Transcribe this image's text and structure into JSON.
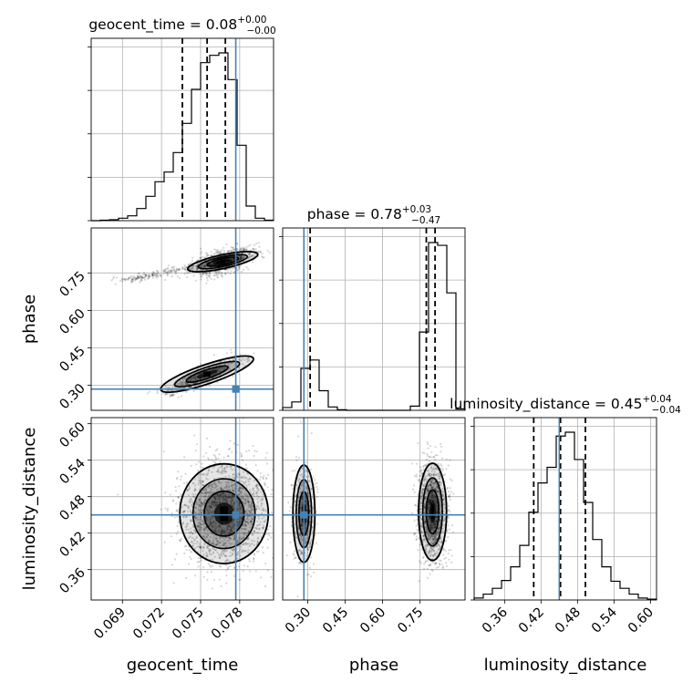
{
  "chart_data": {
    "type": "corner",
    "parameters": [
      "geocent_time",
      "phase",
      "luminosity_distance"
    ],
    "titles": [
      {
        "param": "geocent_time",
        "prefix": "geocent_time = ",
        "median": "0.08",
        "plus": "+0.00",
        "minus": "−0.00"
      },
      {
        "param": "phase",
        "prefix": "phase = ",
        "median": "0.78",
        "plus": "+0.03",
        "minus": "−0.47"
      },
      {
        "param": "luminosity_distance",
        "prefix": "luminosity_distance = ",
        "median": "0.45",
        "plus": "+0.04",
        "minus": "−0.04"
      }
    ],
    "ranges": {
      "geocent_time": [
        0.0666,
        0.0806
      ],
      "phase": [
        0.2,
        0.93
      ],
      "luminosity_distance": [
        0.31,
        0.61
      ]
    },
    "ticks": {
      "geocent_time": {
        "values": [
          0.069,
          0.072,
          0.075,
          0.078
        ],
        "labels": [
          "0.069",
          "0.072",
          "0.075",
          "0.078"
        ]
      },
      "phase": {
        "values": [
          0.3,
          0.45,
          0.6,
          0.75
        ],
        "labels": [
          "0.30",
          "0.45",
          "0.60",
          "0.75"
        ]
      },
      "luminosity_distance": {
        "values": [
          0.36,
          0.42,
          0.48,
          0.54,
          0.6
        ],
        "labels": [
          "0.36",
          "0.42",
          "0.48",
          "0.54",
          "0.60"
        ]
      }
    },
    "truths": {
      "geocent_time": 0.0777,
      "phase": 0.285,
      "luminosity_distance": 0.45
    },
    "quantiles": {
      "geocent_time": [
        0.0736,
        0.0755,
        0.0769
      ],
      "phase": [
        0.31,
        0.775,
        0.81
      ],
      "luminosity_distance": [
        0.408,
        0.452,
        0.493
      ]
    },
    "histograms": {
      "geocent_time": {
        "edges": [
          0.0666,
          0.0673,
          0.068,
          0.0687,
          0.0694,
          0.0701,
          0.0708,
          0.0715,
          0.0722,
          0.0729,
          0.0736,
          0.0743,
          0.075,
          0.0757,
          0.0764,
          0.0771,
          0.0778,
          0.0785,
          0.0792,
          0.0799,
          0.0806
        ],
        "counts": [
          0,
          1,
          2,
          5,
          10,
          25,
          50,
          80,
          100,
          140,
          200,
          270,
          325,
          340,
          345,
          290,
          155,
          30,
          5,
          1
        ]
      },
      "phase": {
        "edges": [
          0.2,
          0.2365,
          0.273,
          0.3095,
          0.346,
          0.3825,
          0.419,
          0.4555,
          0.492,
          0.5285,
          0.565,
          0.6015,
          0.638,
          0.6745,
          0.711,
          0.7475,
          0.784,
          0.8205,
          0.857,
          0.8935,
          0.93
        ],
        "counts": [
          10,
          30,
          150,
          180,
          70,
          12,
          2,
          0,
          0,
          0,
          0,
          0,
          0,
          0,
          15,
          280,
          600,
          590,
          420,
          5
        ]
      },
      "luminosity_distance": {
        "edges": [
          0.31,
          0.325,
          0.34,
          0.355,
          0.37,
          0.385,
          0.4,
          0.415,
          0.43,
          0.445,
          0.46,
          0.475,
          0.49,
          0.505,
          0.52,
          0.535,
          0.55,
          0.565,
          0.58,
          0.595,
          0.61
        ],
        "counts": [
          5,
          15,
          30,
          50,
          85,
          140,
          225,
          300,
          340,
          420,
          430,
          360,
          250,
          155,
          85,
          48,
          30,
          15,
          5,
          2
        ]
      }
    },
    "colors": {
      "truth": "#4682b4",
      "hist": "#000000",
      "quantile": "#000000",
      "grid": "#b0b0b0"
    }
  }
}
